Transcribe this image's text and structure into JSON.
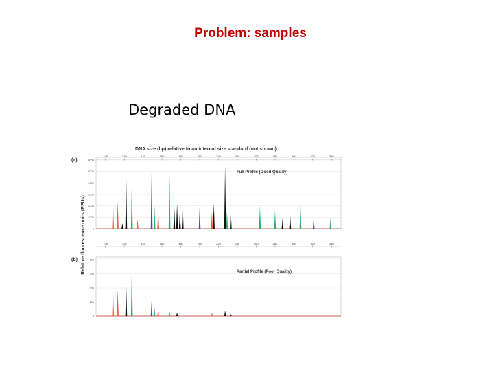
{
  "header": {
    "title": "Problem: samples",
    "subtitle": "Degraded DNA"
  },
  "figure": {
    "x_label": "DNA size (bp) relative to an internal size standard (not shown)",
    "y_label": "Relative fluorescence units (RFUs)",
    "panels": [
      {
        "tag": "(a)",
        "caption": "Full Profile (Good Quality)",
        "xlim": [
          90,
          350
        ],
        "xticks": [
          100,
          120,
          140,
          160,
          180,
          200,
          220,
          240,
          260,
          280,
          300,
          320,
          340
        ],
        "ylim": [
          0,
          6000
        ],
        "yticks": [
          0,
          1000,
          2000,
          3000,
          4000,
          5000,
          6000
        ],
        "x": [
          108,
          113,
          118,
          122,
          128,
          134,
          149,
          152,
          156,
          168,
          173,
          176,
          179,
          182,
          200,
          213,
          215,
          227,
          229,
          233,
          264,
          280,
          288,
          296,
          307,
          321,
          339
        ],
        "values": [
          2400,
          2400,
          480,
          4600,
          4200,
          800,
          5000,
          2000,
          1700,
          4700,
          2000,
          2200,
          1600,
          2200,
          2000,
          1500,
          2200,
          5500,
          1500,
          1700,
          2000,
          1600,
          900,
          1300,
          2000,
          900,
          1000
        ],
        "colors": [
          "#e8603c",
          "#e8603c",
          "#111111",
          "#111111",
          "#2fae6a",
          "#e8603c",
          "#4a4aa8",
          "#2fae6a",
          "#e8603c",
          "#2fae6a",
          "#111111",
          "#111111",
          "#111111",
          "#111111",
          "#4a4aa8",
          "#e8603c",
          "#111111",
          "#111111",
          "#2fae6a",
          "#111111",
          "#2fae6a",
          "#2fae6a",
          "#111111",
          "#111111",
          "#2fae6a",
          "#4a4aa8",
          "#2fae6a"
        ]
      },
      {
        "tag": "(b)",
        "caption": "Partial Profile (Poor Quality)",
        "xlim": [
          90,
          350
        ],
        "xticks": [
          100,
          120,
          140,
          160,
          180,
          200,
          220,
          240,
          260,
          280,
          300,
          320,
          340
        ],
        "ylim": [
          0,
          400
        ],
        "yticks": [
          0,
          100,
          200,
          300,
          400
        ],
        "x": [
          108,
          113,
          122,
          128,
          149,
          152,
          156,
          168,
          176,
          213,
          227,
          233
        ],
        "values": [
          190,
          185,
          220,
          350,
          110,
          60,
          50,
          30,
          25,
          25,
          40,
          25
        ],
        "colors": [
          "#e8603c",
          "#e8603c",
          "#111111",
          "#2fae6a",
          "#4a4aa8",
          "#2fae6a",
          "#e8603c",
          "#2fae6a",
          "#111111",
          "#e8603c",
          "#111111",
          "#111111"
        ]
      }
    ]
  }
}
